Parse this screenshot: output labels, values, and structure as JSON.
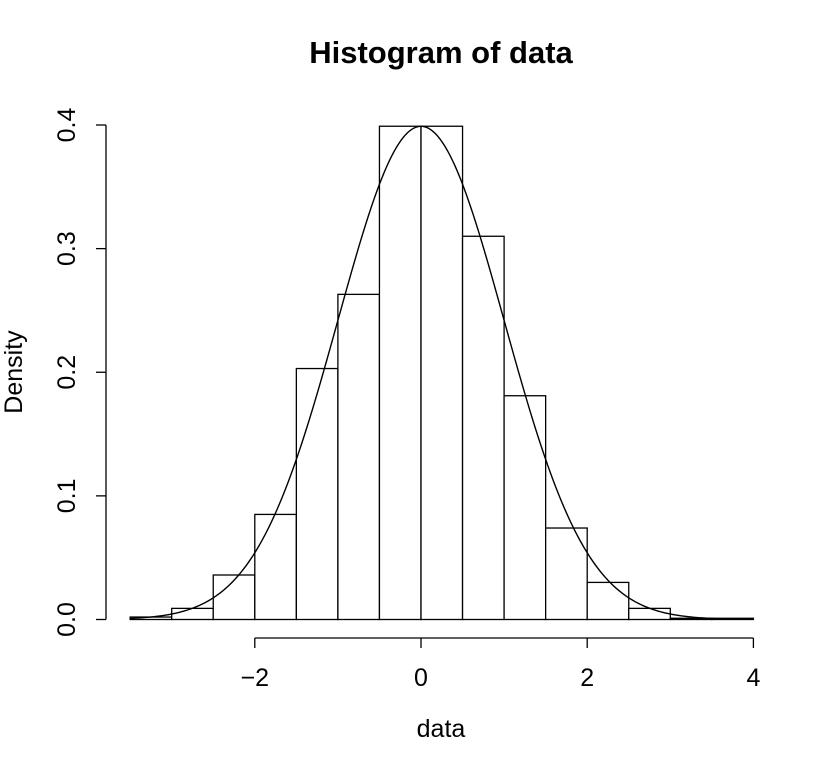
{
  "chart_data": {
    "type": "bar",
    "title": "Histogram of data",
    "xlabel": "data",
    "ylabel": "Density",
    "xlim": [
      -3.5,
      4
    ],
    "ylim": [
      0,
      0.4
    ],
    "x_ticks": [
      -2,
      0,
      2,
      4
    ],
    "x_tick_labels": [
      "−2",
      "0",
      "2",
      "4"
    ],
    "y_ticks": [
      0.0,
      0.1,
      0.2,
      0.3,
      0.4
    ],
    "y_tick_labels": [
      "0.0",
      "0.1",
      "0.2",
      "0.3",
      "0.4"
    ],
    "grid": false,
    "bins": [
      {
        "x0": -3.5,
        "x1": -3.0,
        "density": 0.002
      },
      {
        "x0": -3.0,
        "x1": -2.5,
        "density": 0.009
      },
      {
        "x0": -2.5,
        "x1": -2.0,
        "density": 0.036
      },
      {
        "x0": -2.0,
        "x1": -1.5,
        "density": 0.085
      },
      {
        "x0": -1.5,
        "x1": -1.0,
        "density": 0.203
      },
      {
        "x0": -1.0,
        "x1": -0.5,
        "density": 0.263
      },
      {
        "x0": -0.5,
        "x1": 0.0,
        "density": 0.399
      },
      {
        "x0": 0.0,
        "x1": 0.5,
        "density": 0.399
      },
      {
        "x0": 0.5,
        "x1": 1.0,
        "density": 0.31
      },
      {
        "x0": 1.0,
        "x1": 1.5,
        "density": 0.181
      },
      {
        "x0": 1.5,
        "x1": 2.0,
        "density": 0.074
      },
      {
        "x0": 2.0,
        "x1": 2.5,
        "density": 0.03
      },
      {
        "x0": 2.5,
        "x1": 3.0,
        "density": 0.009
      },
      {
        "x0": 3.0,
        "x1": 3.5,
        "density": 0.001
      },
      {
        "x0": 3.5,
        "x1": 4.0,
        "density": 0.001
      }
    ],
    "overlay": {
      "type": "line",
      "function": "normal density",
      "mean": 0,
      "sd": 1,
      "x_range": [
        -3.5,
        4
      ]
    }
  }
}
